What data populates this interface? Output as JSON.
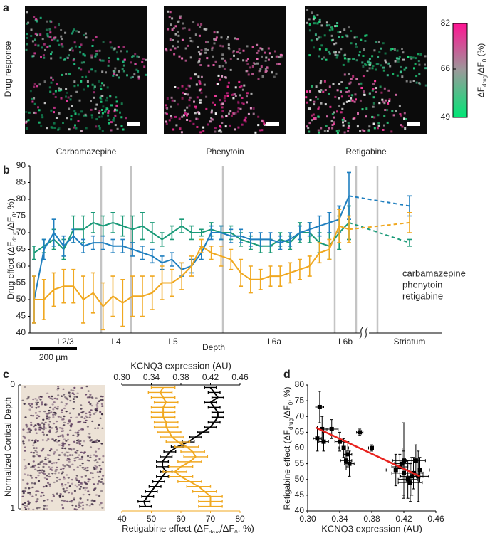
{
  "chart_data": [
    {
      "type": "image-panels",
      "panel": "a",
      "ylabel": "Drug response",
      "images": [
        "Carbamazepine",
        "Phenytoin",
        "Retigabine"
      ],
      "colorbar": {
        "label": [
          "ΔF",
          "drug",
          "/ΔF",
          "0",
          " (%)"
        ],
        "lim": [
          49,
          82
        ],
        "ticks": [
          49,
          66,
          82
        ],
        "colors": [
          "#00e676",
          "#9a9a9a",
          "#ff1493"
        ]
      }
    },
    {
      "type": "line",
      "panel": "b",
      "ylabel": [
        "Drug effect (ΔF",
        "drug",
        "/ΔF",
        "0",
        ", %)"
      ],
      "xlabel": "Depth",
      "regions": [
        "L2/3",
        "L4",
        "L5",
        "L6a",
        "L6b",
        "Striatum"
      ],
      "scale_bar": "200 µm",
      "ylim": [
        40,
        90
      ],
      "yticks": [
        40,
        45,
        50,
        55,
        60,
        65,
        70,
        75,
        80,
        85,
        90
      ],
      "series": [
        {
          "name": "carbamazepine",
          "color": "#1a9a78",
          "values": [
            64,
            66,
            68,
            65,
            71,
            71,
            73,
            72,
            73,
            72,
            71,
            72,
            70,
            68,
            70,
            72,
            70,
            70,
            71,
            70,
            70,
            68,
            67,
            66,
            66,
            68,
            67,
            70,
            70,
            67,
            66,
            70,
            73
          ],
          "errors": [
            2,
            2,
            3,
            3,
            4,
            4,
            3,
            3,
            3,
            3,
            4,
            4,
            3,
            2,
            2,
            2,
            2,
            1,
            2,
            2,
            2,
            2,
            2,
            2,
            2,
            2,
            2,
            3,
            3,
            3,
            4,
            5,
            5
          ],
          "striatum": 67,
          "striatum_error": 1
        },
        {
          "name": "phenytoin",
          "color": "#1f7fbf",
          "values": [
            50,
            65,
            70,
            66,
            69,
            66,
            67,
            67,
            66,
            66,
            65,
            64,
            63,
            61,
            62,
            59,
            60,
            64,
            70,
            70,
            69,
            69,
            68,
            68,
            68,
            67,
            68,
            70,
            71,
            72,
            73,
            74,
            81
          ],
          "errors": [
            7,
            3,
            4,
            3,
            2,
            2,
            2,
            2,
            2,
            2,
            2,
            2,
            2,
            2,
            2,
            2,
            2,
            2,
            2,
            2,
            2,
            2,
            2,
            2,
            2,
            2,
            2,
            2,
            2,
            3,
            3,
            4,
            7
          ],
          "striatum": 78,
          "striatum_error": 3
        },
        {
          "name": "retigabine",
          "color": "#f0a820",
          "values": [
            50,
            50,
            53,
            54,
            54,
            50,
            52,
            48,
            51,
            49,
            51,
            51,
            52,
            55,
            55,
            57,
            60,
            66,
            64,
            63,
            62,
            58,
            56,
            56,
            57,
            57,
            58,
            59,
            60,
            64,
            65,
            72,
            71
          ],
          "errors": [
            7,
            6,
            5,
            5,
            5,
            7,
            6,
            7,
            6,
            7,
            6,
            6,
            5,
            5,
            4,
            4,
            3,
            2,
            2,
            3,
            3,
            4,
            4,
            3,
            3,
            3,
            3,
            3,
            3,
            3,
            3,
            5,
            4
          ],
          "striatum": 73,
          "striatum_error": 3
        }
      ]
    },
    {
      "type": "profile",
      "panel": "c",
      "ylabel": "Normalized Cortical Depth",
      "ylim": [
        0,
        1
      ],
      "yticks": [
        0,
        1
      ],
      "x2label": "KCNQ3 expression (AU)",
      "x2lim": [
        0.3,
        0.46
      ],
      "x2ticks": [
        {
          "value": 0.3,
          "label": "0.30"
        },
        0.34,
        0.38,
        0.42,
        0.46
      ],
      "xlabel": [
        "Retigabine effect (ΔF",
        "drug",
        "/ΔF",
        "0",
        ", %)"
      ],
      "xlim": [
        40,
        80
      ],
      "xticks": [
        40,
        50,
        60,
        70,
        80
      ],
      "y": [
        0.02,
        0.06,
        0.1,
        0.14,
        0.18,
        0.22,
        0.26,
        0.3,
        0.34,
        0.38,
        0.42,
        0.46,
        0.5,
        0.54,
        0.58,
        0.62,
        0.66,
        0.7,
        0.74,
        0.78,
        0.82,
        0.86,
        0.9,
        0.94,
        0.98
      ],
      "series": [
        {
          "color": "#000000",
          "axis": "x2",
          "values": [
            0.42,
            0.425,
            0.43,
            0.42,
            0.425,
            0.43,
            0.43,
            0.425,
            0.42,
            0.41,
            0.4,
            0.39,
            0.375,
            0.365,
            0.36,
            0.355,
            0.355,
            0.36,
            0.355,
            0.35,
            0.345,
            0.34,
            0.335,
            0.33,
            0.332
          ],
          "errors": [
            0.008,
            0.008,
            0.008,
            0.008,
            0.008,
            0.008,
            0.008,
            0.008,
            0.008,
            0.008,
            0.008,
            0.008,
            0.008,
            0.008,
            0.008,
            0.008,
            0.008,
            0.008,
            0.008,
            0.008,
            0.008,
            0.008,
            0.008,
            0.008,
            0.008
          ]
        },
        {
          "color": "#f0a820",
          "values": [
            54,
            53,
            54,
            55,
            54,
            54,
            54,
            55,
            55,
            56,
            57,
            59,
            62,
            64,
            65,
            63,
            60,
            58,
            60,
            63,
            66,
            68,
            70,
            70,
            70
          ],
          "errors": [
            4,
            4,
            4,
            4,
            4,
            4,
            4,
            4,
            4,
            4,
            4,
            4,
            4,
            4,
            4,
            4,
            4,
            4,
            4,
            4,
            4,
            4,
            4,
            4,
            4
          ]
        }
      ]
    },
    {
      "type": "scatter",
      "panel": "d",
      "xlabel": "KCNQ3 expression (AU)",
      "ylabel": [
        "Retigabine effect (ΔF",
        "drug",
        "/ΔF",
        "0",
        ", %)"
      ],
      "xlim": [
        0.3,
        0.46
      ],
      "xticks": [
        {
          "value": 0.3,
          "label": "0.30"
        },
        0.34,
        0.38,
        0.42,
        0.46
      ],
      "ylim": [
        40,
        80
      ],
      "yticks": [
        40,
        45,
        50,
        55,
        60,
        65,
        70,
        75,
        80
      ],
      "color": "#000000",
      "x": [
        0.315,
        0.318,
        0.312,
        0.32,
        0.33,
        0.345,
        0.35,
        0.348,
        0.352,
        0.34,
        0.365,
        0.38,
        0.41,
        0.42,
        0.425,
        0.43,
        0.415,
        0.435,
        0.44,
        0.42,
        0.428,
        0.432,
        0.418,
        0.438
      ],
      "y": [
        73,
        66,
        63,
        62,
        66,
        60,
        58,
        56,
        55,
        62,
        65,
        60,
        53,
        52,
        50,
        51,
        54,
        56,
        53,
        56,
        49,
        52,
        55,
        51
      ],
      "xerr": [
        0.005,
        0.006,
        0.005,
        0.006,
        0.008,
        0.006,
        0.005,
        0.007,
        0.006,
        0.006,
        0.004,
        0.004,
        0.012,
        0.015,
        0.012,
        0.014,
        0.01,
        0.012,
        0.012,
        0.014,
        0.015,
        0.012,
        0.01,
        0.013
      ],
      "yerr": [
        5,
        4,
        4,
        3,
        3,
        3,
        4,
        3,
        4,
        3,
        1,
        1,
        5,
        7,
        6,
        6,
        4,
        5,
        4,
        12,
        6,
        5,
        5,
        8
      ],
      "fit": {
        "color": "#e8231f",
        "x": [
          0.31,
          0.44
        ],
        "y": [
          66.5,
          51
        ]
      }
    }
  ]
}
